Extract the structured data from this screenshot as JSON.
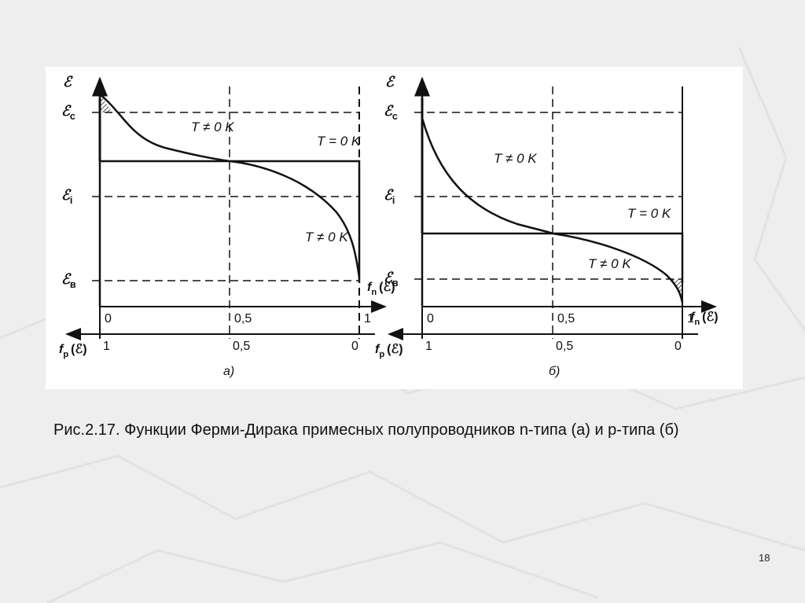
{
  "figure": {
    "panels": [
      {
        "caption": "а)",
        "y_axis": {
          "symbol": "ℰ"
        },
        "levels": [
          {
            "symbol": "ℰ",
            "sub": "c"
          },
          {
            "symbol": "ℰ",
            "sub": "i"
          },
          {
            "symbol": "ℰ",
            "sub": "в"
          }
        ],
        "curve_labels": [
          "T ≠ 0 K",
          "T = 0 K",
          "T ≠ 0 K"
        ],
        "top_scale": [
          "0",
          "0,5",
          "1"
        ],
        "bottom_scale": [
          "1",
          "0,5",
          "0"
        ],
        "fn": {
          "symbol": "f",
          "sub": "n",
          "arg": "(ℰ)"
        },
        "fp": {
          "symbol": "f",
          "sub": "p",
          "arg": "(ℰ)"
        }
      },
      {
        "caption": "б)",
        "y_axis": {
          "symbol": "ℰ"
        },
        "levels": [
          {
            "symbol": "ℰ",
            "sub": "c"
          },
          {
            "symbol": "ℰ",
            "sub": "i"
          },
          {
            "symbol": "ℰ",
            "sub": "в"
          }
        ],
        "curve_labels": [
          "T ≠ 0 K",
          "T = 0 K",
          "T ≠ 0 K"
        ],
        "top_scale": [
          "0",
          "0,5",
          "1"
        ],
        "bottom_scale": [
          "1",
          "0,5",
          "0"
        ],
        "fn": {
          "symbol": "f",
          "sub": "n",
          "arg": "(ℰ)"
        },
        "fp": {
          "symbol": "f",
          "sub": "p",
          "arg": "(ℰ)"
        }
      }
    ]
  },
  "caption": "Рис.2.17. Функции Ферми-Дирака  примесных полупроводников n-типа (а) и р-типа (б)",
  "page_number": "18"
}
